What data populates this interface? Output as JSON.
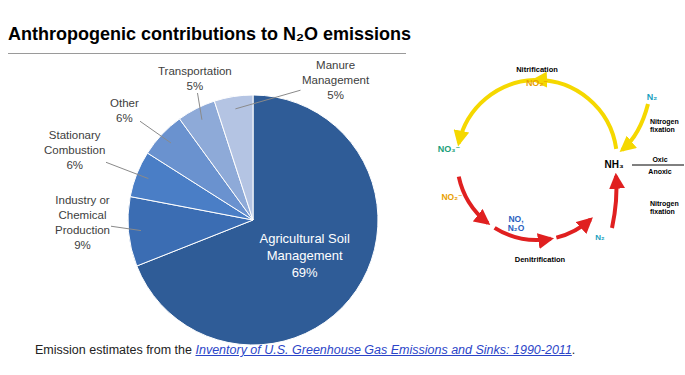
{
  "chart_data": {
    "type": "pie",
    "title": "Anthropogenic contributions to N₂O emissions",
    "categories": [
      "Agricultural Soil Management",
      "Industry or Chemical Production",
      "Stationary Combustion",
      "Other",
      "Transportation",
      "Manure Management"
    ],
    "values": [
      69,
      9,
      6,
      6,
      5,
      5
    ],
    "value_labels": [
      "69%",
      "9%",
      "6%",
      "6%",
      "5%",
      "5%"
    ],
    "colors": [
      "#2f5c97",
      "#3b6db3",
      "#4a7ec6",
      "#6a92cf",
      "#8eaad8",
      "#b4c4e3"
    ],
    "data_labels": true
  },
  "diagram": {
    "processes": {
      "nitrification": "Nitrification",
      "denitrification": "Denitrification",
      "fixation_oxic": "Nitrogen fixation",
      "fixation_anoxic": "Nitrogen fixation"
    },
    "zones": {
      "upper": "Oxic",
      "lower": "Anoxic"
    },
    "nodes": {
      "nitrite_top": "NO₂⁻",
      "n2_top": "N₂",
      "ammonia": "NH₃",
      "n2_bottom": "N₂",
      "no_n2o": "NO, N₂O",
      "nitrite_left": "NO₂⁻",
      "nitrate": "NO₃⁻"
    }
  },
  "footer": {
    "text": "Emission estimates from the",
    "link": "Inventory of U.S. Greenhouse Gas Emissions and Sinks: 1990-2011",
    "end": "."
  }
}
